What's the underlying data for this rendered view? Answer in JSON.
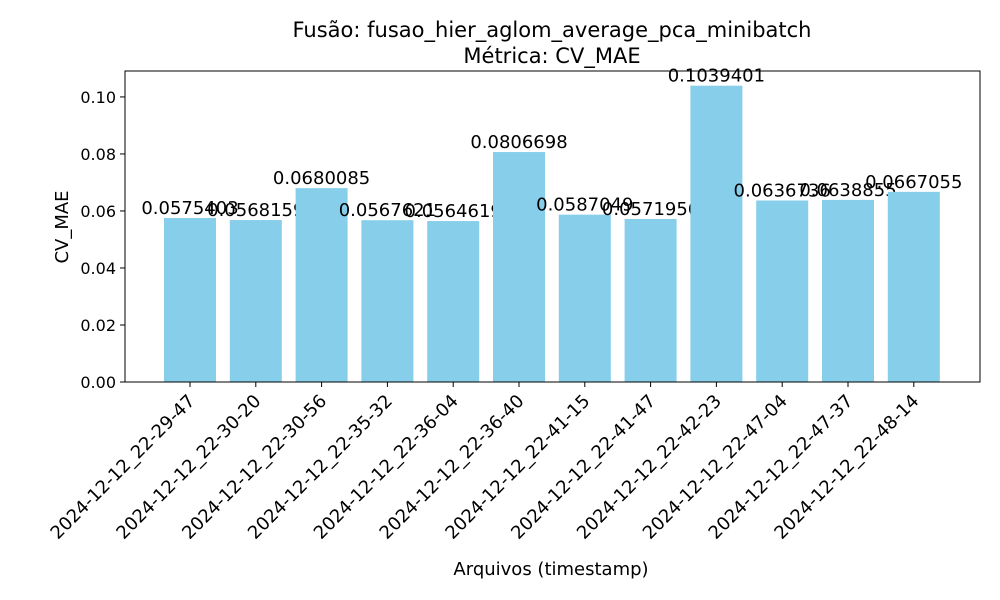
{
  "chart_data": {
    "type": "bar",
    "title": "Fusão: fusao_hier_aglom_average_pca_minibatch",
    "subtitle": "Métrica: CV_MAE",
    "x_label": "Arquivos (timestamp)",
    "y_label": "CV_MAE",
    "categories": [
      "2024-12-12_22-29-47",
      "2024-12-12_22-30-20",
      "2024-12-12_22-30-56",
      "2024-12-12_22-35-32",
      "2024-12-12_22-36-04",
      "2024-12-12_22-36-40",
      "2024-12-12_22-41-15",
      "2024-12-12_22-41-47",
      "2024-12-12_22-42-23",
      "2024-12-12_22-47-04",
      "2024-12-12_22-47-37",
      "2024-12-12_22-48-14"
    ],
    "values": [
      0.0575403,
      0.0568159,
      0.0680085,
      0.0567621,
      0.0564619,
      0.0806698,
      0.0587049,
      0.0571956,
      0.1039401,
      0.0636736,
      0.0638855,
      0.0667055
    ],
    "color": "#87ceeb",
    "ylim": [
      0,
      0.1091
    ],
    "yticks": [
      {
        "value": 0,
        "label": "0.00"
      },
      {
        "value": 0.02,
        "label": "0.02"
      },
      {
        "value": 0.04,
        "label": "0.04"
      },
      {
        "value": 0.06,
        "label": "0.06"
      },
      {
        "value": 0.08,
        "label": "0.08"
      },
      {
        "value": 0.1,
        "label": "0.10"
      }
    ]
  }
}
